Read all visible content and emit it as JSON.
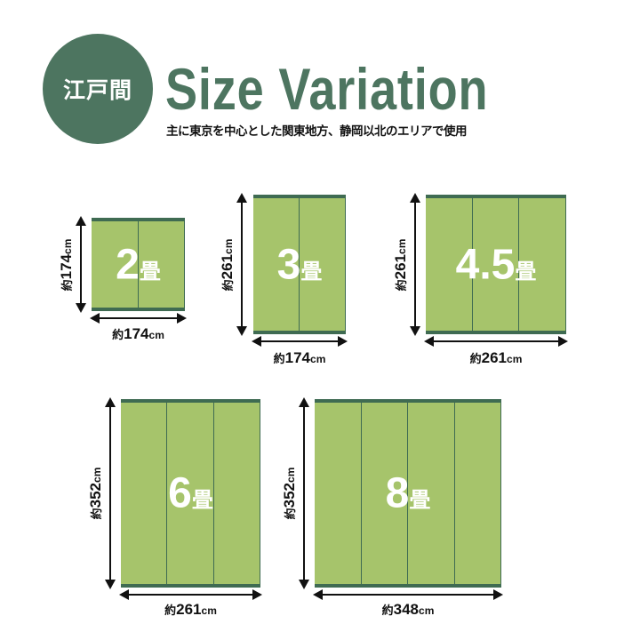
{
  "header": {
    "badge": "江戸間",
    "title": "Size Variation",
    "subtitle": "主に東京を中心とした関東地方、静岡以北のエリアで使用"
  },
  "colors": {
    "brand": "#4d7560",
    "mat": "#a6c46b",
    "mat_border": "#3f6b52"
  },
  "dim_prefix": "約",
  "unit": "cm",
  "jo": "畳",
  "mats": [
    {
      "size": "2",
      "panels": 2,
      "height": "174",
      "width": "174"
    },
    {
      "size": "3",
      "panels": 2,
      "height": "261",
      "width": "174"
    },
    {
      "size": "4.5",
      "panels": 3,
      "height": "261",
      "width": "261"
    },
    {
      "size": "6",
      "panels": 3,
      "height": "352",
      "width": "261"
    },
    {
      "size": "8",
      "panels": 4,
      "height": "352",
      "width": "348"
    }
  ]
}
